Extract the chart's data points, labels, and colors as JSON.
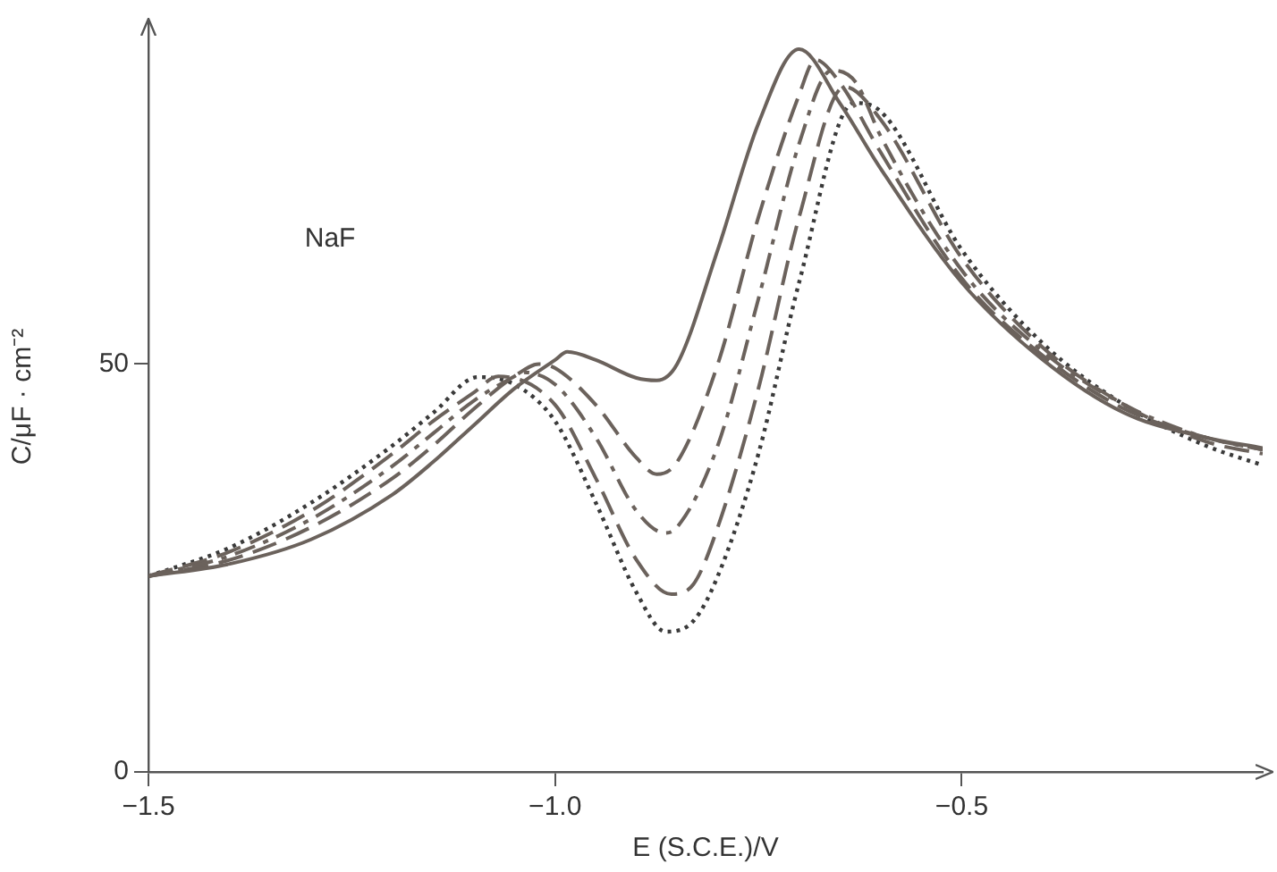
{
  "chart_data": {
    "type": "line",
    "xlabel": "E (S.C.E.)/V",
    "ylabel": "C/μF · cm⁻²",
    "annotations": [
      "NaF"
    ],
    "xlim": [
      -1.5,
      -0.13
    ],
    "xticks": [
      {
        "value": -1.5,
        "label": "−1.5"
      },
      {
        "value": -1.0,
        "label": "−1.0"
      },
      {
        "value": -0.5,
        "label": "−0.5"
      }
    ],
    "ylim": [
      0,
      92
    ],
    "yticks": [
      0,
      50
    ],
    "grid": false,
    "legend": false,
    "marker": "none",
    "series": [
      {
        "color": "#6b625c",
        "line_style": "solid",
        "x": [
          -1.5,
          -1.4,
          -1.3,
          -1.2,
          -1.15,
          -1.1,
          -1.05,
          -1.0,
          -0.985,
          -0.95,
          -0.9,
          -0.875,
          -0.85,
          -0.8,
          -0.75,
          -0.7,
          -0.65,
          -0.6,
          -0.5,
          -0.4,
          -0.3,
          -0.2,
          -0.13
        ],
        "values": [
          24,
          25.5,
          28.5,
          34,
          38,
          42.5,
          47,
          50.5,
          51.5,
          50.5,
          48.3,
          48,
          50,
          64,
          79.5,
          88.6,
          82,
          74,
          60,
          50.5,
          44,
          41,
          39.7
        ]
      },
      {
        "color": "#6b625c",
        "line_style": "dashed",
        "x": [
          -1.5,
          -1.4,
          -1.3,
          -1.2,
          -1.15,
          -1.1,
          -1.05,
          -1.02,
          -1.0,
          -0.95,
          -0.9,
          -0.875,
          -0.85,
          -0.8,
          -0.75,
          -0.7,
          -0.68,
          -0.65,
          -0.6,
          -0.5,
          -0.4,
          -0.3,
          -0.2,
          -0.13
        ],
        "values": [
          24,
          26,
          30,
          36,
          40,
          44.5,
          48.5,
          50,
          49.5,
          45,
          38.5,
          36.5,
          38,
          50,
          68,
          83,
          87.3,
          84.5,
          76,
          60.5,
          51,
          44.5,
          41,
          39.5
        ]
      },
      {
        "color": "#6b625c",
        "line_style": "dashdot",
        "x": [
          -1.5,
          -1.4,
          -1.3,
          -1.2,
          -1.15,
          -1.1,
          -1.05,
          -1.04,
          -1.0,
          -0.95,
          -0.9,
          -0.865,
          -0.85,
          -0.8,
          -0.75,
          -0.7,
          -0.66,
          -0.63,
          -0.6,
          -0.5,
          -0.4,
          -0.3,
          -0.2,
          -0.13
        ],
        "values": [
          24,
          26.5,
          31,
          37.5,
          41.5,
          45.5,
          48.5,
          49,
          47.5,
          41,
          32,
          29.3,
          30,
          40,
          58,
          77,
          86,
          84.5,
          78,
          61.5,
          51.5,
          45,
          41,
          39.5
        ]
      },
      {
        "color": "#6b625c",
        "line_style": "dashed",
        "x": [
          -1.5,
          -1.4,
          -1.3,
          -1.2,
          -1.15,
          -1.1,
          -1.07,
          -1.0,
          -0.95,
          -0.9,
          -0.857,
          -0.83,
          -0.8,
          -0.75,
          -0.7,
          -0.644,
          -0.6,
          -0.5,
          -0.4,
          -0.3,
          -0.2,
          -0.13
        ],
        "values": [
          24,
          27,
          32,
          39,
          43,
          46.5,
          48.5,
          45,
          36,
          26,
          21.8,
          23,
          30,
          47,
          68,
          84,
          80,
          63,
          52,
          45,
          40.5,
          39
        ]
      },
      {
        "color": "#3a3a3a",
        "line_style": "dotted",
        "x": [
          -1.5,
          -1.4,
          -1.3,
          -1.2,
          -1.15,
          -1.095,
          -1.05,
          -1.0,
          -0.95,
          -0.9,
          -0.864,
          -0.83,
          -0.8,
          -0.75,
          -0.7,
          -0.633,
          -0.6,
          -0.5,
          -0.4,
          -0.3,
          -0.2,
          -0.13
        ],
        "values": [
          24,
          27.5,
          33,
          40,
          44,
          48.4,
          47.5,
          43,
          33,
          22,
          17.2,
          18.5,
          24,
          39,
          60,
          82,
          81,
          64,
          52.5,
          45,
          40,
          37.6
        ]
      }
    ]
  }
}
